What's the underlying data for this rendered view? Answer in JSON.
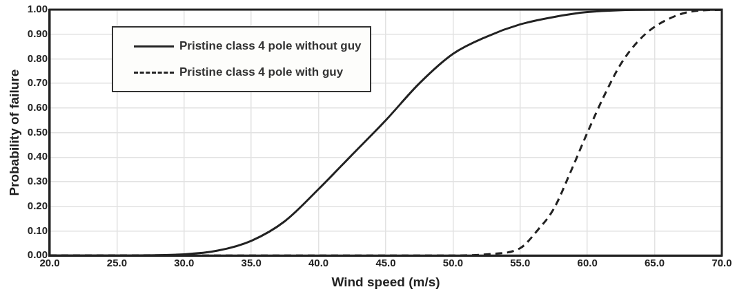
{
  "chart_data": {
    "type": "line",
    "xlabel": "Wind speed (m/s)",
    "ylabel": "Probability of failure",
    "xlim": [
      20,
      70
    ],
    "ylim": [
      0,
      1
    ],
    "xticks": [
      {
        "value": 20,
        "label": "20.0"
      },
      {
        "value": 25,
        "label": "25.0"
      },
      {
        "value": 30,
        "label": "30.0"
      },
      {
        "value": 35,
        "label": "35.0"
      },
      {
        "value": 40,
        "label": "40.0"
      },
      {
        "value": 45,
        "label": "45.0"
      },
      {
        "value": 50,
        "label": "50.0"
      },
      {
        "value": 55,
        "label": "55.0"
      },
      {
        "value": 60,
        "label": "60.0"
      },
      {
        "value": 65,
        "label": "65.0"
      },
      {
        "value": 70,
        "label": "70.0"
      }
    ],
    "yticks": [
      {
        "value": 0,
        "label": "0.00"
      },
      {
        "value": 0.1,
        "label": "0.10"
      },
      {
        "value": 0.2,
        "label": "0.20"
      },
      {
        "value": 0.3,
        "label": "0.30"
      },
      {
        "value": 0.4,
        "label": "0.40"
      },
      {
        "value": 0.5,
        "label": "0.50"
      },
      {
        "value": 0.6,
        "label": "0.60"
      },
      {
        "value": 0.7,
        "label": "0.70"
      },
      {
        "value": 0.8,
        "label": "0.80"
      },
      {
        "value": 0.9,
        "label": "0.90"
      },
      {
        "value": 1,
        "label": "1.00"
      }
    ],
    "grid": true,
    "legend": "top left",
    "marker": "none",
    "series": [
      {
        "name": "Pristine class 4 pole without guy",
        "color": "#222222",
        "line_style": "solid",
        "x": [
          20,
          25,
          30,
          32.5,
          35,
          37.5,
          40,
          42.5,
          45,
          47.5,
          50,
          52.5,
          55,
          57.5,
          60,
          65,
          70
        ],
        "values": [
          0,
          0,
          0.005,
          0.02,
          0.06,
          0.14,
          0.27,
          0.41,
          0.55,
          0.7,
          0.82,
          0.89,
          0.94,
          0.97,
          0.99,
          1,
          1
        ]
      },
      {
        "name": "Pristine class 4 pole with guy",
        "color": "#222222",
        "line_style": "dashed",
        "x": [
          20,
          50,
          52.5,
          55,
          56.25,
          57.5,
          58.75,
          60,
          61.25,
          62.5,
          63.75,
          65,
          67.5,
          70
        ],
        "values": [
          0,
          0,
          0.005,
          0.03,
          0.1,
          0.19,
          0.34,
          0.5,
          0.65,
          0.78,
          0.87,
          0.93,
          0.99,
          1
        ]
      }
    ]
  }
}
